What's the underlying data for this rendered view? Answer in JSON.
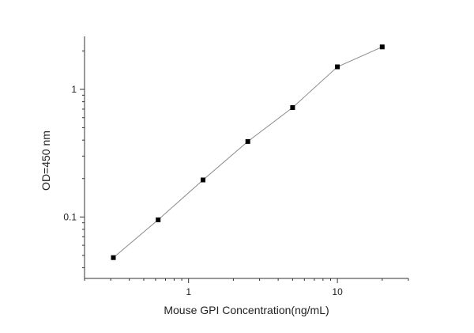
{
  "chart_data": {
    "type": "line",
    "title": "",
    "xlabel": "Mouse GPI Concentration(ng/mL)",
    "ylabel": "OD=450 nm",
    "xscale": "log",
    "yscale": "log",
    "xlim": [
      0.2,
      30
    ],
    "ylim": [
      0.033,
      2.6
    ],
    "xticks": [
      {
        "value": 1,
        "label": "1"
      },
      {
        "value": 10,
        "label": "10"
      }
    ],
    "yticks": [
      {
        "value": 0.1,
        "label": "0.1"
      },
      {
        "value": 1,
        "label": "1"
      }
    ],
    "grid": false,
    "legend": "none",
    "marker": "square",
    "colors": {
      "line": "#8a8a8a",
      "marker": "#000000",
      "axis": "#333333"
    },
    "series": [
      {
        "x": [
          0.3125,
          0.625,
          1.25,
          2.5,
          5,
          10,
          20
        ],
        "y": [
          0.048,
          0.095,
          0.195,
          0.39,
          0.72,
          1.5,
          2.15
        ]
      }
    ]
  }
}
